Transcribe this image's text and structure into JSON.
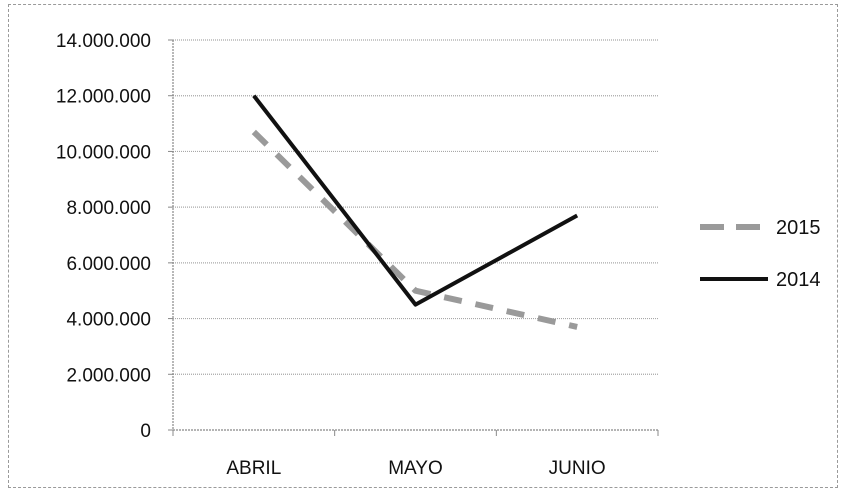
{
  "chart_data": {
    "type": "line",
    "categories": [
      "ABRIL",
      "MAYO",
      "JUNIO"
    ],
    "series": [
      {
        "name": "2015",
        "values": [
          10700000,
          5000000,
          3700000
        ],
        "color": "#9a9a9a",
        "style": "dashed"
      },
      {
        "name": "2014",
        "values": [
          12000000,
          4500000,
          7700000
        ],
        "color": "#111111",
        "style": "solid"
      }
    ],
    "ylim": [
      0,
      14000000
    ],
    "y_ticks": [
      0,
      2000000,
      4000000,
      6000000,
      8000000,
      10000000,
      12000000,
      14000000
    ],
    "y_tick_labels": [
      "0",
      "2.000.000",
      "4.000.000",
      "6.000.000",
      "8.000.000",
      "10.000.000",
      "12.000.000",
      "14.000.000"
    ],
    "title": "",
    "xlabel": "",
    "ylabel": "",
    "grid": true,
    "legend_position": "right"
  }
}
